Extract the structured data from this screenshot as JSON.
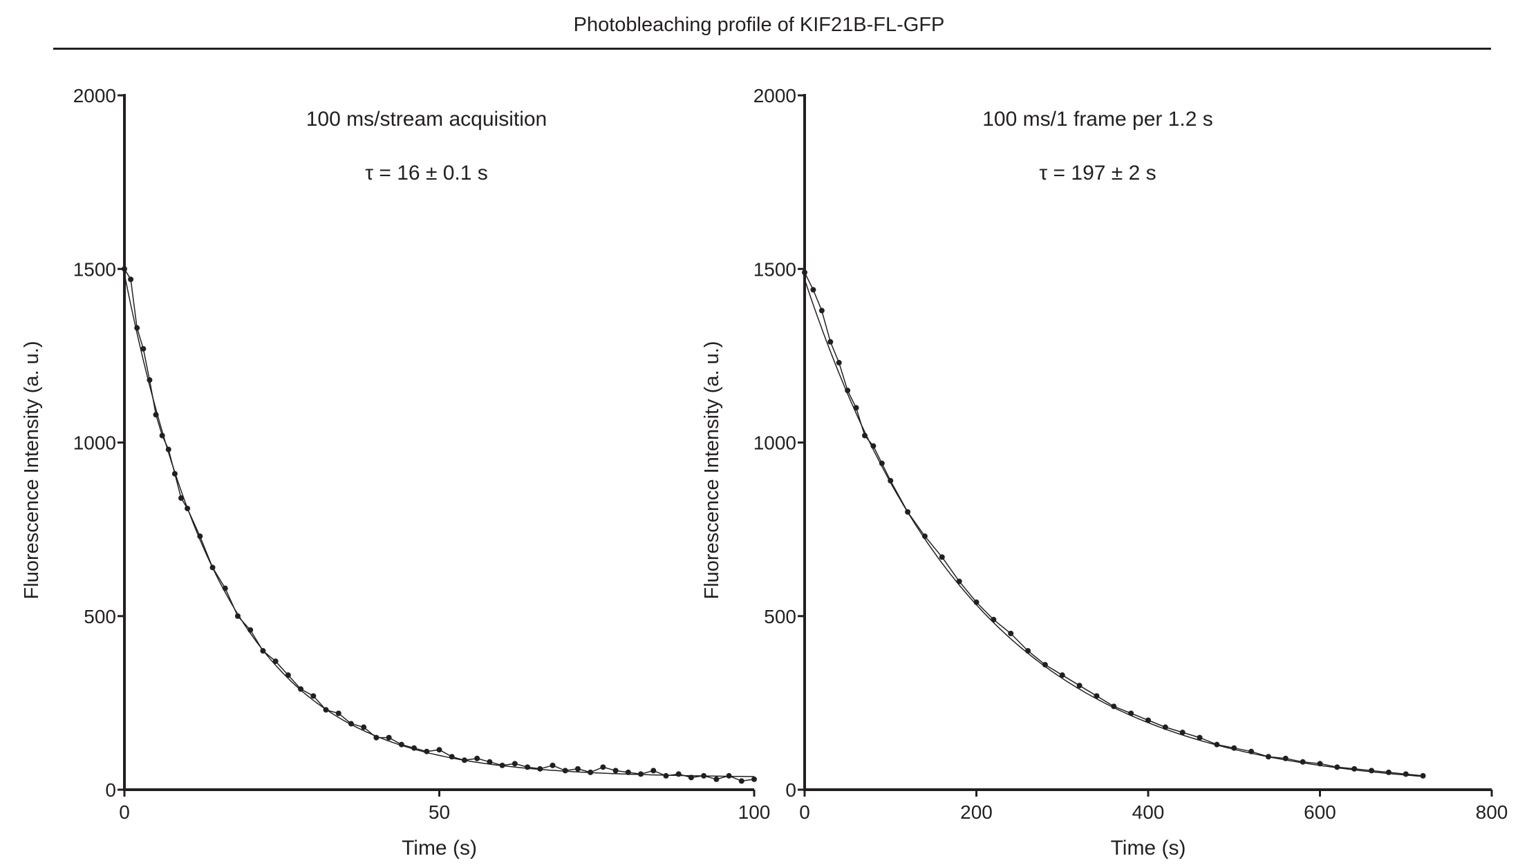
{
  "figure_title": "Photobleaching profile of KIF21B-FL-GFP",
  "colors": {
    "ink": "#231f20"
  },
  "chart_data": [
    {
      "type": "line",
      "annotation_1": "100 ms/stream acquisition",
      "annotation_2": "τ = 16 ± 0.1 s",
      "xlabel": "Time (s)",
      "ylabel": "Fluorescence Intensity (a. u.)",
      "xlim": [
        0,
        100
      ],
      "ylim": [
        0,
        2000
      ],
      "xticks": [
        0,
        50,
        100
      ],
      "yticks": [
        0,
        500,
        1000,
        1500,
        2000
      ],
      "grid": false,
      "fit": {
        "model": "single exponential decay",
        "tau": 16,
        "amplitude": 1450,
        "offset": 35
      },
      "x": [
        0,
        1,
        2,
        3,
        4,
        5,
        6,
        7,
        8,
        9,
        10,
        12,
        14,
        16,
        18,
        20,
        22,
        24,
        26,
        28,
        30,
        32,
        34,
        36,
        38,
        40,
        42,
        44,
        46,
        48,
        50,
        52,
        54,
        56,
        58,
        60,
        62,
        64,
        66,
        68,
        70,
        72,
        74,
        76,
        78,
        80,
        82,
        84,
        86,
        88,
        90,
        92,
        94,
        96,
        98,
        100
      ],
      "y": [
        1500,
        1470,
        1330,
        1270,
        1180,
        1080,
        1020,
        980,
        910,
        840,
        810,
        730,
        640,
        580,
        500,
        460,
        400,
        370,
        330,
        290,
        270,
        230,
        220,
        190,
        180,
        150,
        150,
        130,
        120,
        110,
        115,
        95,
        85,
        90,
        80,
        70,
        75,
        65,
        60,
        70,
        55,
        60,
        50,
        65,
        55,
        50,
        45,
        55,
        40,
        45,
        35,
        40,
        30,
        40,
        25,
        30
      ]
    },
    {
      "type": "line",
      "annotation_1": "100 ms/1 frame per 1.2 s",
      "annotation_2": "τ = 197 ± 2 s",
      "xlabel": "Time (s)",
      "ylabel": "Fluorescence Intensity (a. u.)",
      "xlim": [
        0,
        800
      ],
      "ylim": [
        0,
        2000
      ],
      "xticks": [
        0,
        200,
        400,
        600,
        800
      ],
      "yticks": [
        0,
        500,
        1000,
        1500,
        2000
      ],
      "grid": false,
      "fit": {
        "model": "single exponential decay",
        "tau": 197,
        "amplitude": 1470,
        "offset": 0
      },
      "x": [
        0,
        10,
        20,
        30,
        40,
        50,
        60,
        70,
        80,
        90,
        100,
        120,
        140,
        160,
        180,
        200,
        220,
        240,
        260,
        280,
        300,
        320,
        340,
        360,
        380,
        400,
        420,
        440,
        460,
        480,
        500,
        520,
        540,
        560,
        580,
        600,
        620,
        640,
        660,
        680,
        700,
        720
      ],
      "y": [
        1490,
        1440,
        1380,
        1290,
        1230,
        1150,
        1100,
        1020,
        990,
        940,
        890,
        800,
        730,
        670,
        600,
        540,
        490,
        450,
        400,
        360,
        330,
        300,
        270,
        240,
        220,
        200,
        180,
        165,
        150,
        130,
        120,
        110,
        95,
        90,
        80,
        75,
        65,
        60,
        55,
        50,
        45,
        40
      ]
    }
  ]
}
